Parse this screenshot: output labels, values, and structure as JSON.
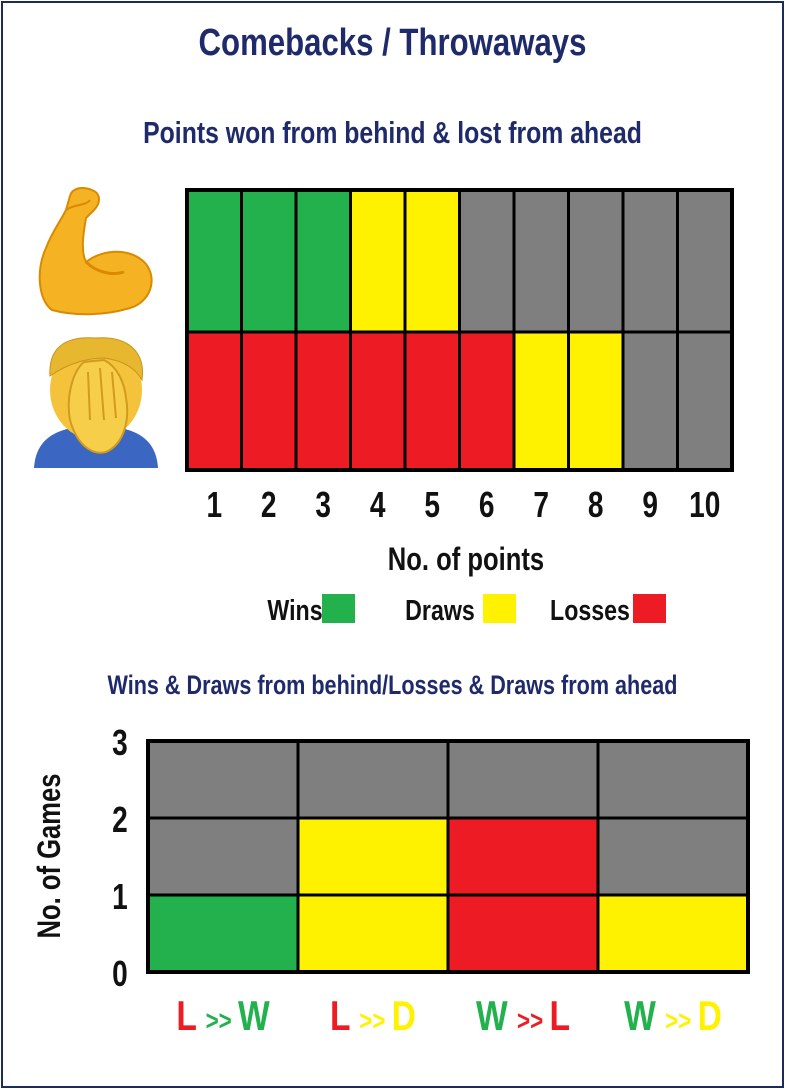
{
  "title": "Comebacks / Throwaways",
  "colors": {
    "win": "#22b14c",
    "draw": "#fff200",
    "loss": "#ed1c24",
    "empty": "#7f7f7f",
    "title": "#1f2a6b"
  },
  "chart_data": [
    {
      "type": "heatmap",
      "title": "Points won from behind & lost from ahead",
      "xlabel": "No. of points",
      "categories": [
        "1",
        "2",
        "3",
        "4",
        "5",
        "6",
        "7",
        "8",
        "9",
        "10"
      ],
      "rows": [
        {
          "icon": "flexed-biceps-icon",
          "cells": [
            "win",
            "win",
            "win",
            "draw",
            "draw",
            "empty",
            "empty",
            "empty",
            "empty",
            "empty"
          ]
        },
        {
          "icon": "facepalm-icon",
          "cells": [
            "loss",
            "loss",
            "loss",
            "loss",
            "loss",
            "loss",
            "draw",
            "draw",
            "empty",
            "empty"
          ]
        }
      ],
      "legend": [
        {
          "label": "Wins",
          "key": "win"
        },
        {
          "label": "Draws",
          "key": "draw"
        },
        {
          "label": "Losses",
          "key": "loss"
        }
      ],
      "legend_position": "bottom"
    },
    {
      "type": "bar",
      "title": "Wins & Draws from behind/Losses & Draws from ahead",
      "ylabel": "No. of Games",
      "ylim": [
        0,
        3
      ],
      "yticks": [
        "0",
        "1",
        "2",
        "3"
      ],
      "categories": [
        {
          "from": "L",
          "to": "W",
          "from_key": "loss",
          "to_key": "win",
          "arrow": ">>"
        },
        {
          "from": "L",
          "to": "D",
          "from_key": "loss",
          "to_key": "draw",
          "arrow": ">>"
        },
        {
          "from": "W",
          "to": "L",
          "from_key": "win",
          "to_key": "loss",
          "arrow": ">>"
        },
        {
          "from": "W",
          "to": "D",
          "from_key": "win",
          "to_key": "draw",
          "arrow": ">>"
        }
      ],
      "values": [
        1,
        2,
        2,
        1
      ],
      "bar_colors": [
        "win",
        "draw",
        "loss",
        "draw"
      ],
      "grid": true
    }
  ]
}
